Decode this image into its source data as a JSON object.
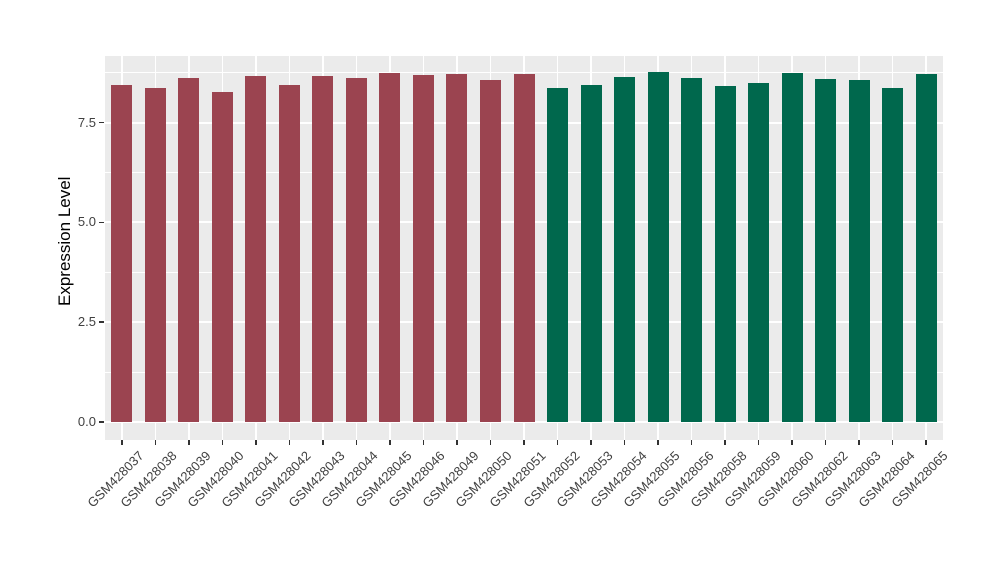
{
  "chart_data": {
    "type": "bar",
    "title": "",
    "xlabel": "",
    "ylabel": "Expression Level",
    "categories": [
      "GSM428037",
      "GSM428038",
      "GSM428039",
      "GSM428040",
      "GSM428041",
      "GSM428042",
      "GSM428043",
      "GSM428044",
      "GSM428045",
      "GSM428046",
      "GSM428049",
      "GSM428050",
      "GSM428051",
      "GSM428052",
      "GSM428053",
      "GSM428054",
      "GSM428055",
      "GSM428056",
      "GSM428058",
      "GSM428059",
      "GSM428060",
      "GSM428062",
      "GSM428063",
      "GSM428064",
      "GSM428065"
    ],
    "values": [
      8.45,
      8.36,
      8.63,
      8.26,
      8.67,
      8.45,
      8.66,
      8.63,
      8.74,
      8.7,
      8.71,
      8.57,
      8.73,
      8.36,
      8.44,
      8.65,
      8.76,
      8.61,
      8.41,
      8.5,
      8.74,
      8.59,
      8.57,
      8.36,
      8.73
    ],
    "bar_groups": [
      "group1",
      "group1",
      "group1",
      "group1",
      "group1",
      "group1",
      "group1",
      "group1",
      "group1",
      "group1",
      "group1",
      "group1",
      "group1",
      "group2",
      "group2",
      "group2",
      "group2",
      "group2",
      "group2",
      "group2",
      "group2",
      "group2",
      "group2",
      "group2",
      "group2"
    ],
    "group_colors": {
      "group1": "#9B4450",
      "group2": "#00684D"
    },
    "yticks": [
      0,
      2.5,
      5,
      7.5
    ],
    "ytick_labels": [
      "0.0",
      "2.5",
      "5.0",
      "7.5"
    ],
    "minor_yticks": [
      1.25,
      3.75,
      6.25,
      8.75
    ],
    "ylim_display": [
      -0.45,
      9.17
    ],
    "grid": true,
    "legend_position": "none",
    "x_tick_label_angle": 45,
    "panel_bg": "#EBEBEB",
    "grid_color": "#FFFFFF",
    "tick_label_color": "#404040",
    "axis_title_color": "#000000"
  }
}
